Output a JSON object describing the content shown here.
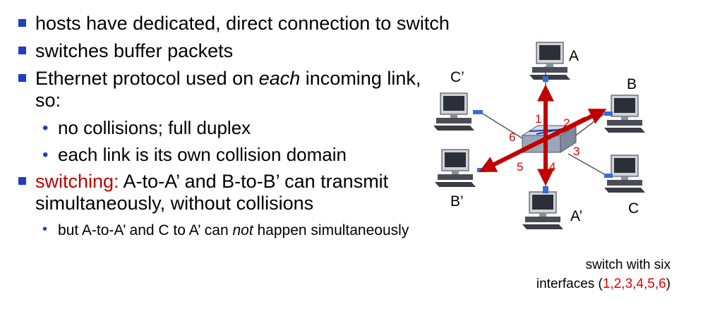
{
  "bullets": {
    "b1": "hosts have dedicated, direct connection to switch",
    "b2": "switches buffer packets",
    "b3_before": "Ethernet protocol used on ",
    "b3_em": "each",
    "b3_after": " incoming link, so:",
    "b3_sub1": "no collisions; full duplex",
    "b3_sub2": "each link is its own collision domain",
    "b4_red": "switching:",
    "b4_rest": " A-to-A’ and B-to-B’ can transmit simultaneously, without collisions",
    "b4_sub_before": "but A-to-A’ and C to A’ can ",
    "b4_sub_em": "not",
    "b4_sub_after": " happen simultaneously"
  },
  "diagram": {
    "hosts": {
      "A": "A",
      "B": "B",
      "C": "C",
      "A_prime": "A’",
      "B_prime": "B’",
      "C_prime": "C’"
    },
    "interfaces": [
      "1",
      "2",
      "3",
      "4",
      "5",
      "6"
    ],
    "colors": {
      "arrow": "#c00000",
      "interface_numbers": "#e00000",
      "switch_top": "#cfd8e8",
      "switch_side": "#9aa6ba"
    }
  },
  "caption": {
    "line1": "switch with six",
    "line2_before": "interfaces (",
    "line2_nums": "1,2,3,4,5,6",
    "line2_after": ")"
  }
}
